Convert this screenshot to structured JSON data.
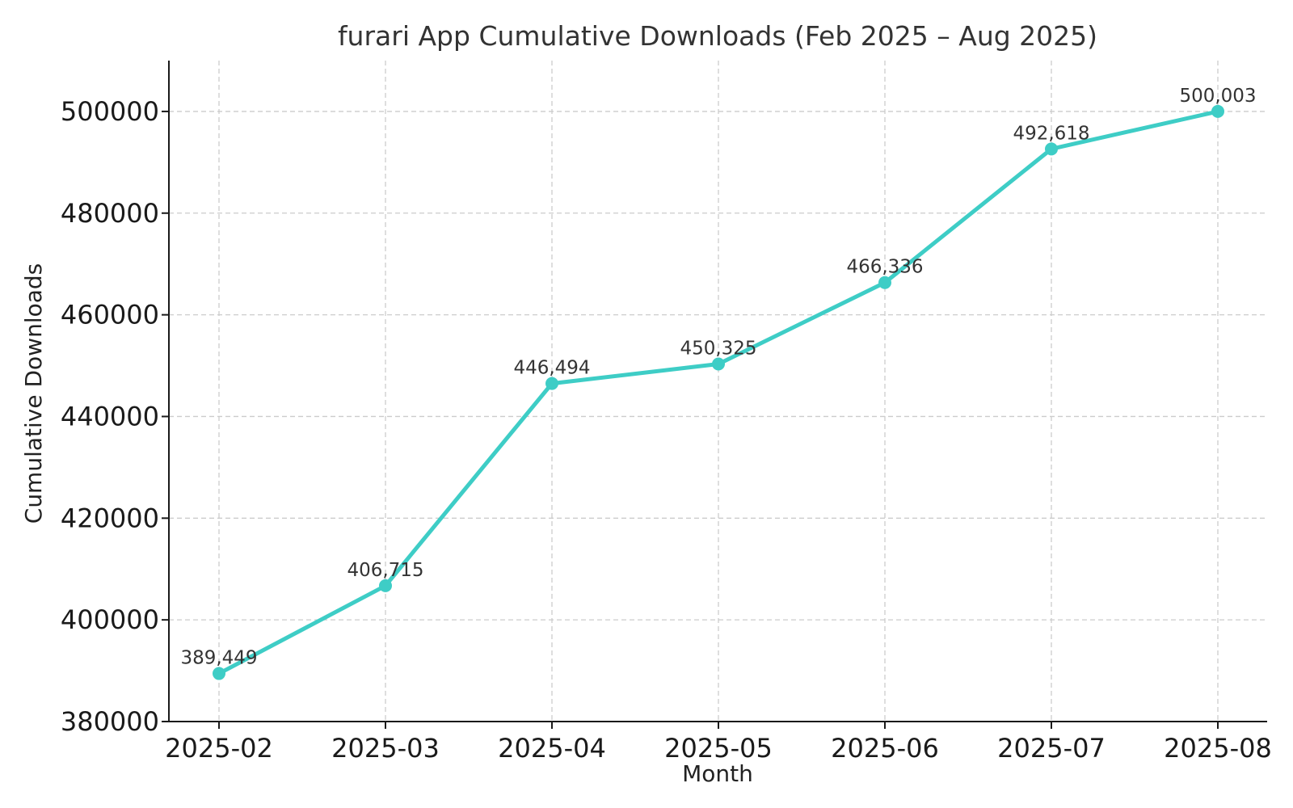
{
  "chart_data": {
    "type": "line",
    "title": "furari App Cumulative Downloads (Feb 2025 – Aug 2025)",
    "xlabel": "Month",
    "ylabel": "Cumulative Downloads",
    "categories": [
      "2025-02",
      "2025-03",
      "2025-04",
      "2025-05",
      "2025-06",
      "2025-07",
      "2025-08"
    ],
    "series": [
      {
        "values": [
          389449,
          406715,
          446494,
          450325,
          466336,
          492618,
          500003
        ],
        "data_labels": [
          "389,449",
          "406,715",
          "446,494",
          "450,325",
          "466,336",
          "492,618",
          "500,003"
        ],
        "color": "#3ecdc6"
      }
    ],
    "ylim": [
      380000,
      510000
    ],
    "yticks": [
      380000,
      400000,
      420000,
      440000,
      460000,
      480000,
      500000
    ],
    "ytick_labels": [
      "380000",
      "400000",
      "420000",
      "440000",
      "460000",
      "480000",
      "500000"
    ],
    "grid": true,
    "legend": "none"
  }
}
